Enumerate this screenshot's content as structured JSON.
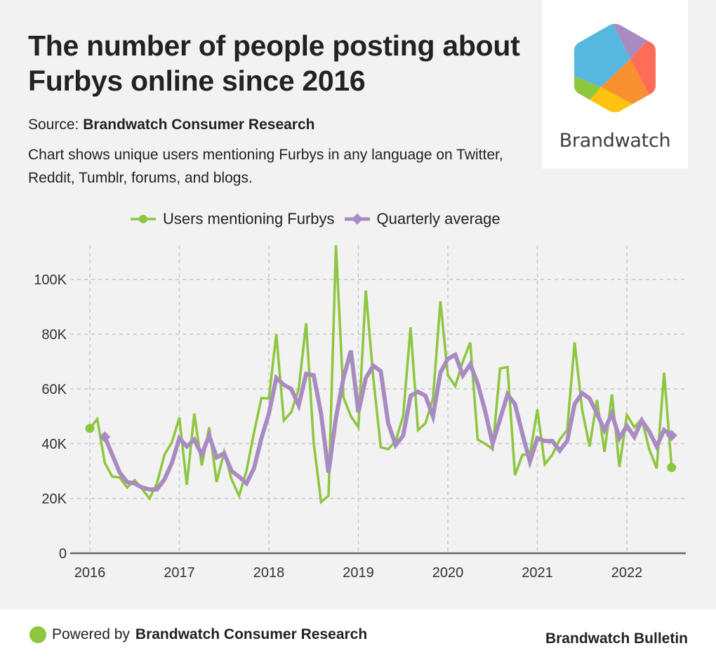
{
  "header": {
    "title": "The number of people posting about Furbys online since 2016",
    "source_label": "Source:",
    "source_name": "Brandwatch Consumer Research",
    "description": "Chart shows unique users mentioning Furbys in any language on Twitter, Reddit, Tumblr, forums, and blogs."
  },
  "logo": {
    "name": "Brandwatch",
    "icon": "brandwatch-hexagon-logo",
    "colors": [
      "#56b8de",
      "#a88cc1",
      "#ff6d57",
      "#f7902f",
      "#ffc20e",
      "#8dc63f"
    ]
  },
  "footer": {
    "powered_prefix": "Powered by",
    "powered_name": "Brandwatch Consumer Research",
    "brand": "Brandwatch Bulletin"
  },
  "colors": {
    "users_series": "#8dc63f",
    "average_series": "#a88cc1",
    "background": "#f2f2f2",
    "grid": "#c8c8c8",
    "axis": "#666666"
  },
  "chart_data": {
    "type": "line",
    "title": "The number of people posting about Furbys online since 2016",
    "xlabel": "",
    "ylabel": "",
    "x_unit": "monthly",
    "x_start": "2016-01",
    "x_ticks": [
      "2016",
      "2017",
      "2018",
      "2019",
      "2020",
      "2021",
      "2022"
    ],
    "y_ticks": [
      0,
      20000,
      40000,
      60000,
      80000,
      100000
    ],
    "y_tick_labels": [
      "0",
      "20K",
      "40K",
      "60K",
      "80K",
      "100K"
    ],
    "ylim": [
      0,
      112000
    ],
    "grid": true,
    "legend_position": "top-center",
    "series": [
      {
        "name": "Users mentioning Furbys",
        "marker": "circle-endpoints",
        "start_month_index": 0,
        "values": [
          45600,
          49000,
          33000,
          28000,
          27700,
          24000,
          26700,
          23500,
          20000,
          25500,
          36000,
          40500,
          49500,
          25000,
          51000,
          32000,
          46000,
          26000,
          37000,
          27000,
          21000,
          30000,
          44000,
          56700,
          56500,
          80000,
          48500,
          51500,
          60000,
          84000,
          40500,
          18700,
          21000,
          112500,
          57000,
          50000,
          46000,
          96000,
          64000,
          38700,
          38000,
          41000,
          50000,
          82500,
          45000,
          47500,
          56500,
          92000,
          65000,
          61000,
          70000,
          77000,
          41500,
          40000,
          38000,
          67500,
          68000,
          28500,
          36000,
          36000,
          52500,
          32500,
          36000,
          41500,
          45000,
          77000,
          52500,
          39000,
          56000,
          37000,
          58000,
          31500,
          50500,
          46000,
          49000,
          38000,
          31000,
          66000,
          31300
        ]
      },
      {
        "name": "Quarterly average",
        "marker": "diamond-endpoints",
        "start_month_index": 2,
        "values": [
          42500,
          36000,
          29500,
          26000,
          25500,
          24000,
          23300,
          23300,
          27000,
          33000,
          42000,
          39000,
          41500,
          36000,
          43000,
          35000,
          36500,
          30000,
          28000,
          25500,
          31000,
          42000,
          51000,
          64000,
          61500,
          60000,
          54000,
          65500,
          65000,
          51000,
          29500,
          49500,
          64000,
          74000,
          51500,
          64000,
          68500,
          66500,
          47500,
          39500,
          43000,
          57500,
          59000,
          57500,
          50000,
          66000,
          71000,
          72500,
          65000,
          69000,
          62000,
          52000,
          40000,
          49000,
          58000,
          54500,
          43500,
          33500,
          42000,
          41000,
          41000,
          37500,
          41000,
          54500,
          58500,
          56500,
          51000,
          45000,
          51000,
          42000,
          46500,
          42500,
          48500,
          44500,
          39000,
          45000,
          43000
        ]
      }
    ]
  }
}
